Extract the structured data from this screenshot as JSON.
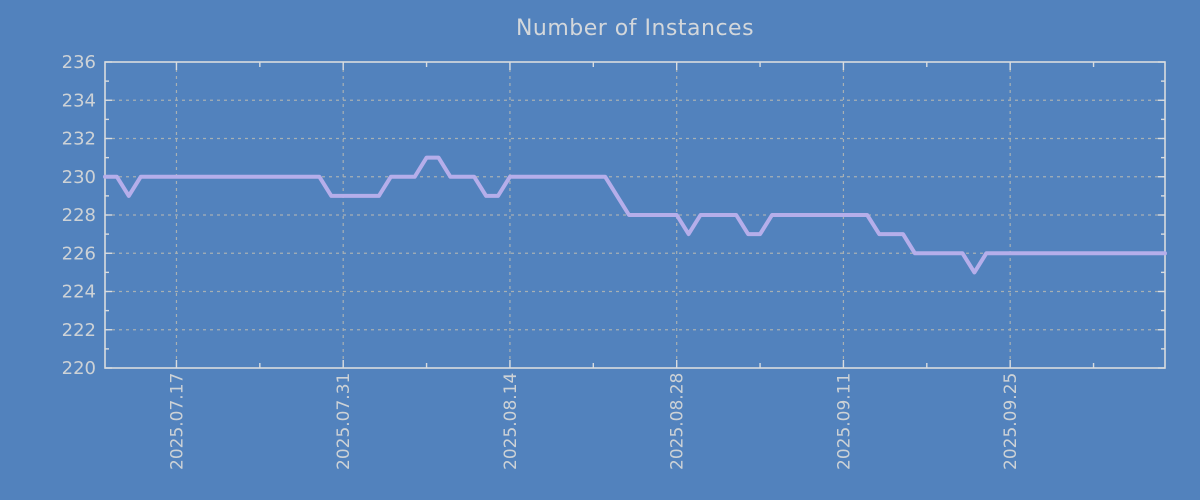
{
  "chart_data": {
    "type": "line",
    "title": "Number of Instances",
    "xlabel": "",
    "ylabel": "",
    "ylim": [
      220,
      236
    ],
    "grid": true,
    "legend": "none",
    "y_ticks": [
      220,
      222,
      224,
      226,
      228,
      230,
      232,
      234,
      236
    ],
    "x_tick_labels": [
      {
        "label": "2025.07.17",
        "day_index": 6
      },
      {
        "label": "2025.07.31",
        "day_index": 20
      },
      {
        "label": "2025.08.14",
        "day_index": 34
      },
      {
        "label": "2025.08.28",
        "day_index": 48
      },
      {
        "label": "2025.09.11",
        "day_index": 62
      },
      {
        "label": "2025.09.25",
        "day_index": 76
      }
    ],
    "x_minor_tick_day_indices": [
      13,
      27,
      41,
      55,
      69,
      83
    ],
    "series": [
      {
        "name": "instances",
        "start_date": "2025-07-11",
        "interval_days": 1,
        "values": [
          230,
          230,
          229,
          230,
          230,
          230,
          230,
          230,
          230,
          230,
          230,
          230,
          230,
          230,
          230,
          230,
          230,
          230,
          230,
          229,
          229,
          229,
          229,
          229,
          230,
          230,
          230,
          231,
          231,
          230,
          230,
          230,
          229,
          229,
          230,
          230,
          230,
          230,
          230,
          230,
          230,
          230,
          230,
          229,
          228,
          228,
          228,
          228,
          228,
          227,
          228,
          228,
          228,
          228,
          227,
          227,
          228,
          228,
          228,
          228,
          228,
          228,
          228,
          228,
          228,
          227,
          227,
          227,
          226,
          226,
          226,
          226,
          226,
          225,
          226,
          226,
          226,
          226,
          226,
          226,
          226,
          226,
          226,
          226,
          226,
          226,
          226,
          226,
          226,
          226
        ]
      }
    ],
    "colors": {
      "background": "#5282bd",
      "line": "#b5aeea",
      "grid": "#bdbcb2",
      "frame": "#d9dcdf",
      "tick_text": "#cdd2d6",
      "title_text": "#d3d7db"
    }
  }
}
